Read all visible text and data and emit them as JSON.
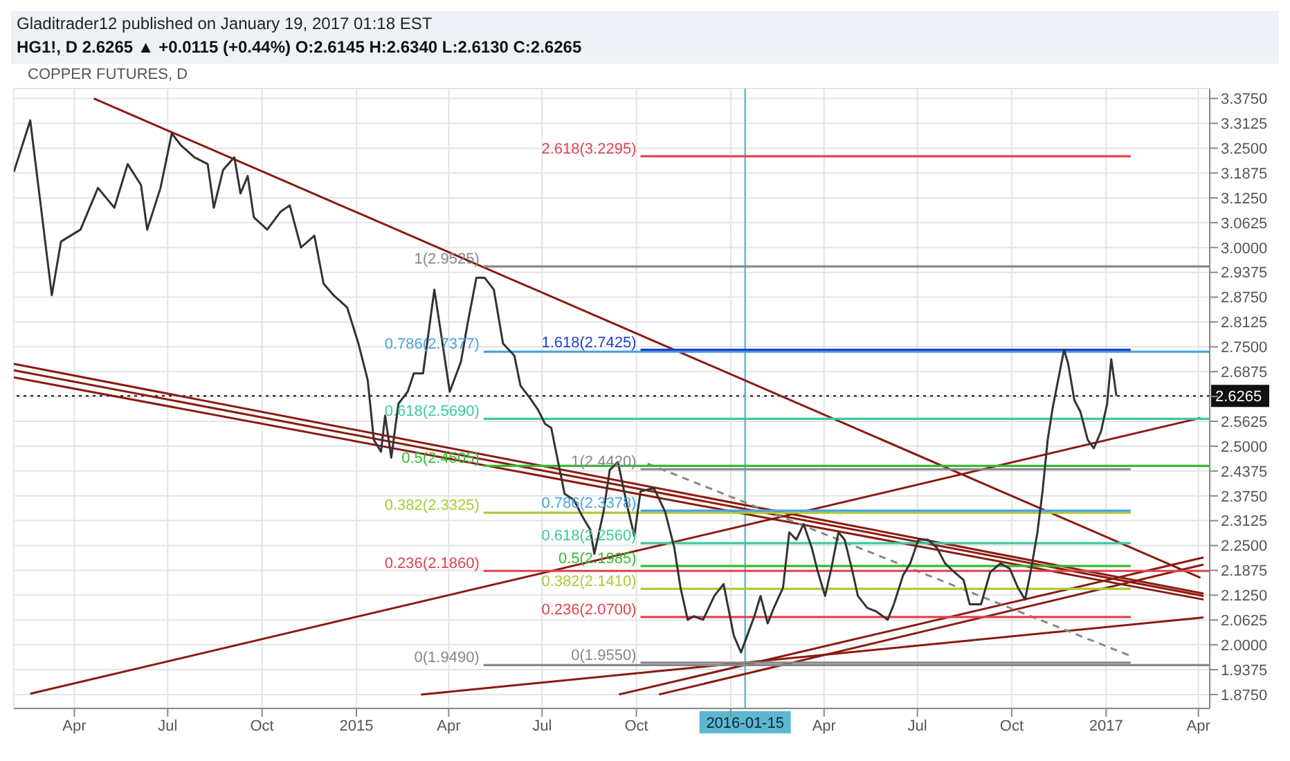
{
  "chart_data": {
    "type": "line",
    "title": "Gladitrader12 published on January 19, 2017 01:18 EST",
    "subtitle": "HG1!, D 2.6265 ▲ +0.0115 (+0.44%) O:2.6145 H:2.6340 L:2.6130 C:2.6265",
    "annotations": [
      "COPPER FUTURES, D"
    ],
    "xlim": [
      "2014-02-01",
      "2017-04-12"
    ],
    "xticks": [
      {
        "value": "2014-04-01",
        "label": "Apr"
      },
      {
        "value": "2014-07-01",
        "label": "Jul"
      },
      {
        "value": "2014-10-01",
        "label": "Oct"
      },
      {
        "value": "2015-01-01",
        "label": "2015"
      },
      {
        "value": "2015-04-01",
        "label": "Apr"
      },
      {
        "value": "2015-07-01",
        "label": "Jul"
      },
      {
        "value": "2015-10-01",
        "label": "Oct"
      },
      {
        "value": "2016-01-01",
        "label": null
      },
      {
        "value": "2016-04-01",
        "label": "Apr"
      },
      {
        "value": "2016-07-01",
        "label": "Jul"
      },
      {
        "value": "2016-10-01",
        "label": "Oct"
      },
      {
        "value": "2017-01-01",
        "label": "2017"
      },
      {
        "value": "2017-04-01",
        "label": "Apr"
      }
    ],
    "ylim": [
      1.84,
      3.4
    ],
    "yticks": [
      {
        "value": 1.875,
        "label": "1.8750"
      },
      {
        "value": 1.9375,
        "label": "1.9375"
      },
      {
        "value": 2,
        "label": "2.0000"
      },
      {
        "value": 2.0625,
        "label": "2.0625"
      },
      {
        "value": 2.125,
        "label": "2.1250"
      },
      {
        "value": 2.1875,
        "label": "2.1875"
      },
      {
        "value": 2.25,
        "label": "2.2500"
      },
      {
        "value": 2.3125,
        "label": "2.3125"
      },
      {
        "value": 2.375,
        "label": "2.3750"
      },
      {
        "value": 2.4375,
        "label": "2.4375"
      },
      {
        "value": 2.5,
        "label": "2.5000"
      },
      {
        "value": 2.5625,
        "label": "2.5625"
      },
      {
        "value": 2.625,
        "label": null
      },
      {
        "value": 2.6875,
        "label": "2.6875"
      },
      {
        "value": 2.75,
        "label": "2.7500"
      },
      {
        "value": 2.8125,
        "label": "2.8125"
      },
      {
        "value": 2.875,
        "label": "2.8750"
      },
      {
        "value": 2.9375,
        "label": "2.9375"
      },
      {
        "value": 3,
        "label": "3.0000"
      },
      {
        "value": 3.0625,
        "label": "3.0625"
      },
      {
        "value": 3.125,
        "label": "3.1250"
      },
      {
        "value": 3.1875,
        "label": "3.1875"
      },
      {
        "value": 3.25,
        "label": "3.2500"
      },
      {
        "value": 3.3125,
        "label": "3.3125"
      },
      {
        "value": 3.375,
        "label": "3.3750"
      }
    ],
    "grid": true,
    "marker": "none",
    "ref_lines": [
      {
        "axis": "y",
        "value": 2.6265,
        "label": "2.6265",
        "color": "#111111",
        "line_style": "dotted"
      },
      {
        "axis": "x",
        "value": "2016-01-15",
        "label": "2016-01-15",
        "color": "#5bb8d0"
      }
    ],
    "series": [
      {
        "color": "#8b1a10",
        "x": [
          "2014-04-20",
          "2017-04-03"
        ],
        "values": [
          3.375,
          2.169
        ]
      },
      {
        "color": "#8b1a10",
        "x": [
          "2014-02-01",
          "2017-04-06"
        ],
        "values": [
          2.707,
          2.129
        ]
      },
      {
        "color": "#8b1a10",
        "x": [
          "2014-02-01",
          "2017-04-06"
        ],
        "values": [
          2.691,
          2.123
        ]
      },
      {
        "color": "#8b1a10",
        "x": [
          "2014-02-01",
          "2017-04-06"
        ],
        "values": [
          2.673,
          2.114
        ]
      },
      {
        "color": "#8b1a10",
        "x": [
          "2014-02-17",
          "2017-04-03"
        ],
        "values": [
          1.877,
          2.571
        ]
      },
      {
        "color": "#8b1a10",
        "x": [
          "2015-03-05",
          "2017-04-06"
        ],
        "values": [
          1.875,
          2.069
        ]
      },
      {
        "color": "#8b1a10",
        "x": [
          "2015-09-14",
          "2017-04-06"
        ],
        "values": [
          1.875,
          2.22
        ]
      },
      {
        "color": "#8b1a10",
        "x": [
          "2015-10-23",
          "2017-04-06"
        ],
        "values": [
          1.875,
          2.202
        ]
      },
      {
        "type": "line",
        "color": "#888888",
        "line_style": "dashed",
        "x": [
          "2015-10-12",
          "2017-01-25"
        ],
        "values": [
          2.456,
          1.972
        ]
      },
      {
        "type": "line",
        "name": "2.618(3.2295)",
        "color": "#e0434f",
        "x": [
          "2015-10-05",
          "2017-01-25"
        ],
        "values": [
          3.2295,
          3.2295
        ]
      },
      {
        "type": "line",
        "name": "1(2.9525)",
        "color": "#888888",
        "x": [
          "2015-05-05",
          "2017-04-12"
        ],
        "values": [
          2.9525,
          2.9525
        ]
      },
      {
        "type": "line",
        "name": "0.786(2.7377)",
        "color": "#4aa3df",
        "x": [
          "2015-05-05",
          "2017-04-12"
        ],
        "values": [
          2.7377,
          2.7377
        ]
      },
      {
        "type": "line",
        "name": "1.618(2.7425)",
        "color": "#1f3fd0",
        "x": [
          "2015-10-05",
          "2017-01-25"
        ],
        "values": [
          2.7425,
          2.7425
        ]
      },
      {
        "type": "line",
        "name": "0.618(2.5690)",
        "color": "#3cc9a0",
        "x": [
          "2015-05-05",
          "2017-04-12"
        ],
        "values": [
          2.569,
          2.569
        ]
      },
      {
        "type": "line",
        "name": "0.5(2.4505)",
        "color": "#33bb33",
        "x": [
          "2015-05-05",
          "2017-04-12"
        ],
        "values": [
          2.4505,
          2.4505
        ]
      },
      {
        "type": "line",
        "name": "0.382(2.3325)",
        "color": "#a8cc33",
        "x": [
          "2015-05-05",
          "2017-01-25"
        ],
        "values": [
          2.3325,
          2.3325
        ]
      },
      {
        "type": "line",
        "name": "0.236(2.1860)",
        "color": "#e0434f",
        "x": [
          "2015-05-05",
          "2017-04-12"
        ],
        "values": [
          2.186,
          2.186
        ]
      },
      {
        "type": "line",
        "name": "0(1.9490)",
        "color": "#888888",
        "x": [
          "2015-05-05",
          "2017-04-12"
        ],
        "values": [
          1.949,
          1.949
        ]
      },
      {
        "type": "line",
        "name": "1(2.4420)",
        "color": "#888888",
        "x": [
          "2015-10-05",
          "2017-01-25"
        ],
        "values": [
          2.442,
          2.442
        ]
      },
      {
        "type": "line",
        "name": "0.786(2.3378)",
        "color": "#4aa3df",
        "x": [
          "2015-10-05",
          "2017-01-25"
        ],
        "values": [
          2.3378,
          2.3378
        ]
      },
      {
        "type": "line",
        "name": "0.618(2.2560)",
        "color": "#3cc9a0",
        "x": [
          "2015-10-05",
          "2017-01-25"
        ],
        "values": [
          2.256,
          2.256
        ]
      },
      {
        "type": "line",
        "name": "0.5(2.1985)",
        "color": "#33bb33",
        "x": [
          "2015-10-05",
          "2017-01-25"
        ],
        "values": [
          2.1985,
          2.1985
        ]
      },
      {
        "type": "line",
        "name": "0.382(2.1410)",
        "color": "#a8cc33",
        "x": [
          "2015-10-05",
          "2017-01-25"
        ],
        "values": [
          2.141,
          2.141
        ]
      },
      {
        "type": "line",
        "name": "0.236(2.0700)",
        "color": "#e0434f",
        "x": [
          "2015-10-05",
          "2017-01-25"
        ],
        "values": [
          2.07,
          2.07
        ]
      },
      {
        "type": "line",
        "name": "0(1.9550)",
        "color": "#888888",
        "x": [
          "2015-10-05",
          "2017-01-25"
        ],
        "values": [
          1.955,
          1.955
        ]
      },
      {
        "type": "line",
        "color": "#333333",
        "x": [
          "2014-02-01",
          "2014-02-17",
          "2014-03-10",
          "2014-03-19",
          "2014-04-07",
          "2014-04-24",
          "2014-05-10",
          "2014-05-23",
          "2014-06-05",
          "2014-06-11",
          "2014-06-24",
          "2014-07-05",
          "2014-07-14",
          "2014-07-27",
          "2014-08-09",
          "2014-08-15",
          "2014-08-24",
          "2014-09-04",
          "2014-09-10",
          "2014-09-17",
          "2014-09-23",
          "2014-10-06",
          "2014-10-19",
          "2014-10-28",
          "2014-11-08",
          "2014-11-21",
          "2014-11-30",
          "2014-12-10",
          "2014-12-23",
          "2015-01-03",
          "2015-01-12",
          "2015-01-18",
          "2015-01-25",
          "2015-01-29",
          "2015-02-04",
          "2015-02-11",
          "2015-02-20",
          "2015-02-26",
          "2015-03-07",
          "2015-03-18",
          "2015-03-26",
          "2015-04-02",
          "2015-04-13",
          "2015-04-19",
          "2015-04-28",
          "2015-05-06",
          "2015-05-15",
          "2015-05-24",
          "2015-06-04",
          "2015-06-10",
          "2015-06-19",
          "2015-06-27",
          "2015-07-04",
          "2015-07-10",
          "2015-07-17",
          "2015-07-23",
          "2015-08-01",
          "2015-08-10",
          "2015-08-17",
          "2015-08-21",
          "2015-08-30",
          "2015-09-05",
          "2015-09-13",
          "2015-09-22",
          "2015-09-29",
          "2015-10-05",
          "2015-10-18",
          "2015-10-29",
          "2015-11-07",
          "2015-11-13",
          "2015-11-20",
          "2015-11-26",
          "2015-12-05",
          "2015-12-16",
          "2015-12-25",
          "2016-01-04",
          "2016-01-11",
          "2016-01-17",
          "2016-01-24",
          "2016-01-30",
          "2016-02-06",
          "2016-02-12",
          "2016-02-21",
          "2016-02-27",
          "2016-03-05",
          "2016-03-12",
          "2016-03-20",
          "2016-03-26",
          "2016-04-02",
          "2016-04-08",
          "2016-04-15",
          "2016-04-21",
          "2016-04-28",
          "2016-05-04",
          "2016-05-13",
          "2016-05-22",
          "2016-06-02",
          "2016-06-08",
          "2016-06-17",
          "2016-06-24",
          "2016-07-02",
          "2016-07-11",
          "2016-07-20",
          "2016-07-28",
          "2016-08-06",
          "2016-08-15",
          "2016-08-21",
          "2016-09-01",
          "2016-09-10",
          "2016-09-20",
          "2016-09-29",
          "2016-10-07",
          "2016-10-14",
          "2016-10-20",
          "2016-10-26",
          "2016-10-31",
          "2016-11-05",
          "2016-11-10",
          "2016-11-21",
          "2016-11-25",
          "2016-12-01",
          "2016-12-07",
          "2016-12-14",
          "2016-12-20",
          "2016-12-27",
          "2017-01-02",
          "2017-01-06",
          "2017-01-11"
        ],
        "values": [
          3.19,
          3.32,
          2.88,
          3.015,
          3.045,
          3.15,
          3.1,
          3.21,
          3.157,
          3.045,
          3.15,
          3.287,
          3.257,
          3.227,
          3.21,
          3.1,
          3.195,
          3.227,
          3.136,
          3.18,
          3.076,
          3.045,
          3.09,
          3.106,
          3.0,
          3.03,
          2.909,
          2.879,
          2.849,
          2.758,
          2.667,
          2.516,
          2.486,
          2.577,
          2.471,
          2.607,
          2.637,
          2.683,
          2.683,
          2.894,
          2.758,
          2.637,
          2.713,
          2.803,
          2.924,
          2.924,
          2.894,
          2.758,
          2.728,
          2.652,
          2.622,
          2.592,
          2.556,
          2.546,
          2.456,
          2.38,
          2.365,
          2.32,
          2.29,
          2.229,
          2.335,
          2.44,
          2.46,
          2.35,
          2.274,
          2.386,
          2.395,
          2.335,
          2.244,
          2.144,
          2.063,
          2.072,
          2.063,
          2.123,
          2.153,
          2.023,
          1.981,
          2.023,
          2.072,
          2.123,
          2.054,
          2.093,
          2.144,
          2.283,
          2.265,
          2.304,
          2.244,
          2.183,
          2.123,
          2.192,
          2.283,
          2.265,
          2.192,
          2.123,
          2.093,
          2.084,
          2.063,
          2.102,
          2.175,
          2.205,
          2.265,
          2.265,
          2.244,
          2.205,
          2.183,
          2.163,
          2.102,
          2.102,
          2.183,
          2.205,
          2.192,
          2.144,
          2.114,
          2.192,
          2.283,
          2.386,
          2.516,
          2.598,
          2.743,
          2.707,
          2.616,
          2.586,
          2.516,
          2.495,
          2.537,
          2.607,
          2.719,
          2.6265
        ]
      }
    ]
  }
}
